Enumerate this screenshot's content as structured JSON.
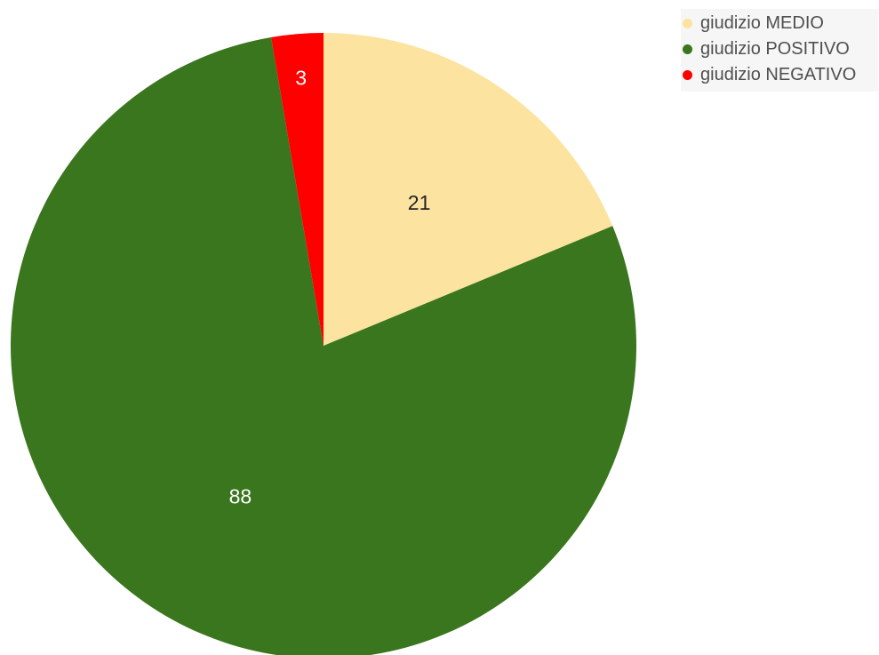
{
  "chart_data": {
    "type": "pie",
    "slices": [
      {
        "label": "giudizio MEDIO",
        "value": 21,
        "color": "#fce3a0",
        "label_color": "#222222"
      },
      {
        "label": "giudizio POSITIVO",
        "value": 88,
        "color": "#3a761d",
        "label_color": "#ffffff"
      },
      {
        "label": "giudizio NEGATIVO",
        "value": 3,
        "color": "#ff0000",
        "label_color": "#ffffff"
      }
    ],
    "legend_position": "top-right",
    "start_angle": "12 o'clock",
    "direction": "clockwise",
    "data_labels": "values"
  }
}
